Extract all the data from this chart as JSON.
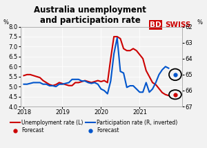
{
  "title": "Australia unemployment\nand participation rate",
  "left_ylabel": "%",
  "right_ylabel": "%",
  "left_ylim": [
    4.0,
    8.0
  ],
  "right_ylim": [
    67,
    62
  ],
  "left_yticks": [
    4.0,
    4.5,
    5.0,
    5.5,
    6.0,
    6.5,
    7.0,
    7.5,
    8.0
  ],
  "right_yticks": [
    62,
    63,
    64,
    65,
    66,
    67
  ],
  "background_color": "#f2f2f2",
  "unemployment_color": "#cc0000",
  "participation_color": "#0055cc",
  "unemployment_data": {
    "dates": [
      2018.0,
      2018.083,
      2018.167,
      2018.25,
      2018.333,
      2018.417,
      2018.5,
      2018.583,
      2018.667,
      2018.75,
      2018.833,
      2018.917,
      2019.0,
      2019.083,
      2019.167,
      2019.25,
      2019.333,
      2019.417,
      2019.5,
      2019.583,
      2019.667,
      2019.75,
      2019.833,
      2019.917,
      2020.0,
      2020.083,
      2020.167,
      2020.25,
      2020.333,
      2020.417,
      2020.5,
      2020.583,
      2020.667,
      2020.75,
      2020.833,
      2020.917,
      2021.0,
      2021.083,
      2021.167,
      2021.25,
      2021.333,
      2021.417,
      2021.5,
      2021.583,
      2021.667,
      2021.75
    ],
    "values": [
      5.55,
      5.6,
      5.6,
      5.55,
      5.5,
      5.45,
      5.3,
      5.2,
      5.1,
      5.05,
      5.1,
      5.2,
      5.15,
      5.1,
      5.05,
      5.05,
      5.2,
      5.2,
      5.25,
      5.3,
      5.25,
      5.2,
      5.25,
      5.3,
      5.25,
      5.3,
      5.2,
      6.4,
      7.5,
      7.5,
      7.4,
      6.9,
      6.8,
      6.8,
      6.9,
      6.8,
      6.6,
      6.4,
      5.8,
      5.5,
      5.2,
      5.1,
      4.9,
      4.7,
      4.6,
      4.55
    ]
  },
  "participation_data": {
    "dates": [
      2018.0,
      2018.083,
      2018.167,
      2018.25,
      2018.333,
      2018.417,
      2018.5,
      2018.583,
      2018.667,
      2018.75,
      2018.833,
      2018.917,
      2019.0,
      2019.083,
      2019.167,
      2019.25,
      2019.333,
      2019.417,
      2019.5,
      2019.583,
      2019.667,
      2019.75,
      2019.833,
      2019.917,
      2020.0,
      2020.083,
      2020.167,
      2020.25,
      2020.333,
      2020.417,
      2020.5,
      2020.583,
      2020.667,
      2020.75,
      2020.833,
      2020.917,
      2021.0,
      2021.083,
      2021.167,
      2021.25,
      2021.333,
      2021.417,
      2021.5,
      2021.583,
      2021.667,
      2021.75
    ],
    "values": [
      65.6,
      65.6,
      65.55,
      65.5,
      65.5,
      65.5,
      65.6,
      65.6,
      65.7,
      65.7,
      65.75,
      65.6,
      65.6,
      65.55,
      65.5,
      65.3,
      65.3,
      65.3,
      65.4,
      65.4,
      65.5,
      65.55,
      65.5,
      65.6,
      65.9,
      66.0,
      66.2,
      65.4,
      63.7,
      62.7,
      64.8,
      64.9,
      65.8,
      65.7,
      65.7,
      65.9,
      66.1,
      66.1,
      65.5,
      66.1,
      65.9,
      65.5,
      65.0,
      64.7,
      64.5,
      64.6
    ]
  },
  "unemployment_forecast": {
    "date": 2021.917,
    "value": 4.6
  },
  "participation_forecast": {
    "date": 2021.917,
    "value": 65.0
  },
  "xlim": [
    2017.92,
    2022.1
  ],
  "xticks": [
    2018,
    2019,
    2020,
    2021
  ],
  "logo_bd": "BD",
  "logo_swiss": "SWISS",
  "logo_color_bd_bg": "#cc0000",
  "logo_color_swiss": "#cc0000",
  "logo_arrow_color": "#cc0000",
  "legend_items": [
    {
      "label": "Unemployment rate (L)",
      "color": "#cc0000",
      "type": "line"
    },
    {
      "label": "Forecast",
      "color": "#cc0000",
      "type": "circle_marker"
    },
    {
      "label": "Participation rate (R, inverted)",
      "color": "#0055cc",
      "type": "line"
    },
    {
      "label": "Forecast",
      "color": "#0055cc",
      "type": "circle_marker"
    }
  ],
  "title_fontsize": 8.5,
  "tick_fontsize": 6,
  "legend_fontsize": 5.5,
  "grid_color": "#ffffff",
  "grid_linewidth": 0.6
}
